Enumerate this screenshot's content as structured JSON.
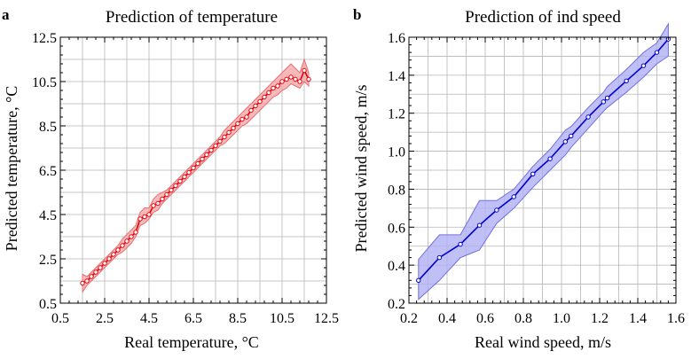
{
  "chart_data": [
    {
      "type": "line",
      "panel_label": "a",
      "title": "Prediction of temperature",
      "xlabel": "Real temperature, °C",
      "ylabel": "Predicted temperature, °C",
      "xlim": [
        0.5,
        12.5
      ],
      "ylim": [
        0.5,
        12.5
      ],
      "xticks": [
        "0.5",
        "2.5",
        "4.5",
        "6.5",
        "8.5",
        "10.5",
        "12.5"
      ],
      "yticks": [
        "0.5",
        "2.5",
        "4.5",
        "6.5",
        "8.5",
        "10.5",
        "12.5"
      ],
      "grid": true,
      "colors": {
        "line": "#e8000b",
        "band": "#f4a6a6",
        "band_edge": "#e87070"
      },
      "series": [
        {
          "x": [
            1.5,
            1.7,
            1.9,
            2.1,
            2.3,
            2.5,
            2.7,
            2.9,
            3.1,
            3.3,
            3.5,
            3.7,
            3.9,
            4.1,
            4.3,
            4.5,
            4.7,
            4.9,
            5.1,
            5.3,
            5.5,
            5.7,
            5.9,
            6.1,
            6.3,
            6.5,
            6.7,
            6.9,
            7.1,
            7.3,
            7.5,
            7.7,
            7.9,
            8.1,
            8.3,
            8.5,
            8.7,
            8.9,
            9.1,
            9.3,
            9.5,
            9.7,
            9.9,
            10.1,
            10.3,
            10.5,
            10.7,
            10.9,
            11.1,
            11.3,
            11.5,
            11.7
          ],
          "y": [
            1.4,
            1.5,
            1.7,
            1.9,
            2.1,
            2.3,
            2.5,
            2.7,
            2.9,
            3.1,
            3.3,
            3.5,
            3.7,
            4.3,
            4.4,
            4.5,
            4.9,
            5.0,
            5.2,
            5.4,
            5.6,
            5.8,
            6.0,
            6.2,
            6.4,
            6.6,
            6.8,
            7.0,
            7.2,
            7.4,
            7.6,
            7.8,
            8.0,
            8.2,
            8.4,
            8.6,
            8.8,
            8.9,
            9.2,
            9.4,
            9.6,
            9.8,
            10.0,
            10.2,
            10.3,
            10.5,
            10.6,
            10.7,
            10.6,
            10.5,
            11.0,
            10.6
          ],
          "lower": [
            1.0,
            1.3,
            1.5,
            1.7,
            1.9,
            2.1,
            2.3,
            2.5,
            2.7,
            2.8,
            3.0,
            3.2,
            3.5,
            4.0,
            4.1,
            4.3,
            4.6,
            4.7,
            5.0,
            5.2,
            5.4,
            5.6,
            5.8,
            6.0,
            6.2,
            6.4,
            6.6,
            6.8,
            7.0,
            7.2,
            7.4,
            7.6,
            7.7,
            7.9,
            8.1,
            8.3,
            8.5,
            8.6,
            8.8,
            9.0,
            9.2,
            9.4,
            9.6,
            9.8,
            9.9,
            10.1,
            10.2,
            10.4,
            10.3,
            10.2,
            10.5,
            10.3
          ],
          "upper": [
            1.8,
            1.7,
            1.9,
            2.1,
            2.3,
            2.5,
            2.7,
            2.9,
            3.1,
            3.4,
            3.6,
            3.8,
            4.0,
            4.6,
            4.8,
            4.8,
            5.2,
            5.4,
            5.5,
            5.6,
            5.8,
            6.0,
            6.2,
            6.4,
            6.6,
            6.8,
            7.0,
            7.2,
            7.4,
            7.6,
            7.8,
            8.0,
            8.3,
            8.5,
            8.7,
            8.9,
            9.1,
            9.3,
            9.5,
            9.7,
            9.9,
            10.1,
            10.3,
            10.5,
            10.7,
            10.9,
            11.1,
            11.3,
            11.1,
            10.9,
            11.5,
            10.9
          ]
        }
      ]
    },
    {
      "type": "line",
      "panel_label": "b",
      "title": "Prediction of ind speed",
      "xlabel": "Real wind speed, m/s",
      "ylabel": "Predicted wind speed, m/s",
      "xlim": [
        0.2,
        1.6
      ],
      "ylim": [
        0.2,
        1.6
      ],
      "xticks": [
        "0.2",
        "0.4",
        "0.6",
        "0.8",
        "1.0",
        "1.2",
        "1.4",
        "1.6"
      ],
      "yticks": [
        "0.2",
        "0.4",
        "0.6",
        "0.8",
        "1.0",
        "1.2",
        "1.4",
        "1.6"
      ],
      "grid": true,
      "colors": {
        "line": "#0000cc",
        "band": "#b0b0f4",
        "band_edge": "#7070e0"
      },
      "series": [
        {
          "x": [
            0.25,
            0.36,
            0.47,
            0.57,
            0.66,
            0.75,
            0.85,
            0.94,
            1.02,
            1.05,
            1.14,
            1.22,
            1.24,
            1.34,
            1.43,
            1.5,
            1.56
          ],
          "y": [
            0.32,
            0.44,
            0.51,
            0.61,
            0.69,
            0.76,
            0.88,
            0.96,
            1.05,
            1.08,
            1.18,
            1.26,
            1.28,
            1.37,
            1.45,
            1.52,
            1.59
          ],
          "lower": [
            0.22,
            0.32,
            0.44,
            0.48,
            0.62,
            0.7,
            0.81,
            0.9,
            0.98,
            1.02,
            1.12,
            1.21,
            1.23,
            1.31,
            1.39,
            1.46,
            1.5
          ],
          "upper": [
            0.43,
            0.56,
            0.56,
            0.74,
            0.74,
            0.8,
            0.92,
            1.01,
            1.11,
            1.13,
            1.23,
            1.31,
            1.34,
            1.43,
            1.52,
            1.57,
            1.67
          ]
        }
      ]
    }
  ]
}
